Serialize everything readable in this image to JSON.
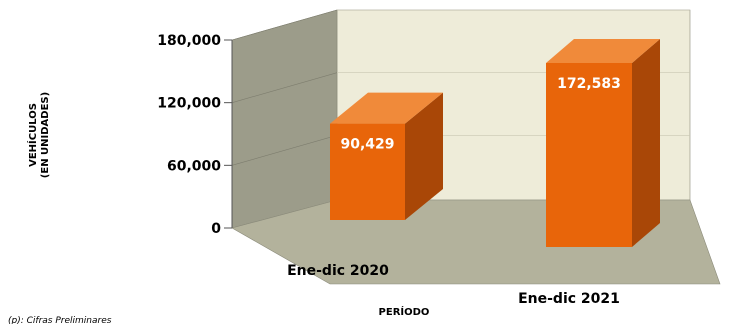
{
  "chart_data": {
    "type": "bar",
    "categories": [
      "Ene-dic 2020",
      "Ene-dic 2021"
    ],
    "values": [
      90429,
      172583
    ],
    "value_labels": [
      "90,429",
      "172,583"
    ],
    "ylabel_lines": [
      "VEHÍCULOS",
      "(EN UNIDADES)"
    ],
    "xlabel": "PERÍODO",
    "ylim": [
      0,
      180000
    ],
    "yticks": [
      0,
      60000,
      120000,
      180000
    ],
    "ytick_labels": [
      "0",
      "60,000",
      "120,000",
      "180,000"
    ],
    "note": "(p): Cifras Preliminares",
    "colors": {
      "bar_front": "#e8650a",
      "bar_side": "#a94707",
      "bar_top": "#f08a3a",
      "back_wall": "#eeecd9",
      "side_wall": "#9c9c8a",
      "floor": "#b3b29c"
    }
  }
}
